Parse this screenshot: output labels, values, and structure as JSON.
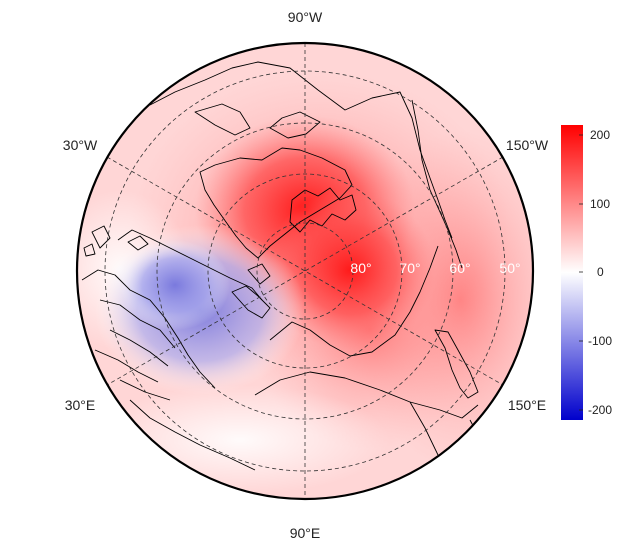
{
  "map": {
    "projection": "north-polar-stereographic",
    "graticule_style": "dashed",
    "longitude_labels": {
      "top": "90°W",
      "upper_left": "30°W",
      "upper_right": "150°W",
      "lower_left": "30°E",
      "lower_right": "150°E",
      "bottom": "90°E"
    },
    "latitude_labels": [
      "80°",
      "70°",
      "60°",
      "50°"
    ]
  },
  "colorbar": {
    "ticks": [
      "200",
      "100",
      "0",
      "-100",
      "-200"
    ],
    "range": [
      -220,
      220
    ],
    "colors": {
      "max": "#ff0000",
      "mid": "#ffffff",
      "min": "#0000cc"
    }
  },
  "field": {
    "positive_color": "#ff0000",
    "negative_color": "#4444cc",
    "background_tint": "#ffd9d9"
  }
}
